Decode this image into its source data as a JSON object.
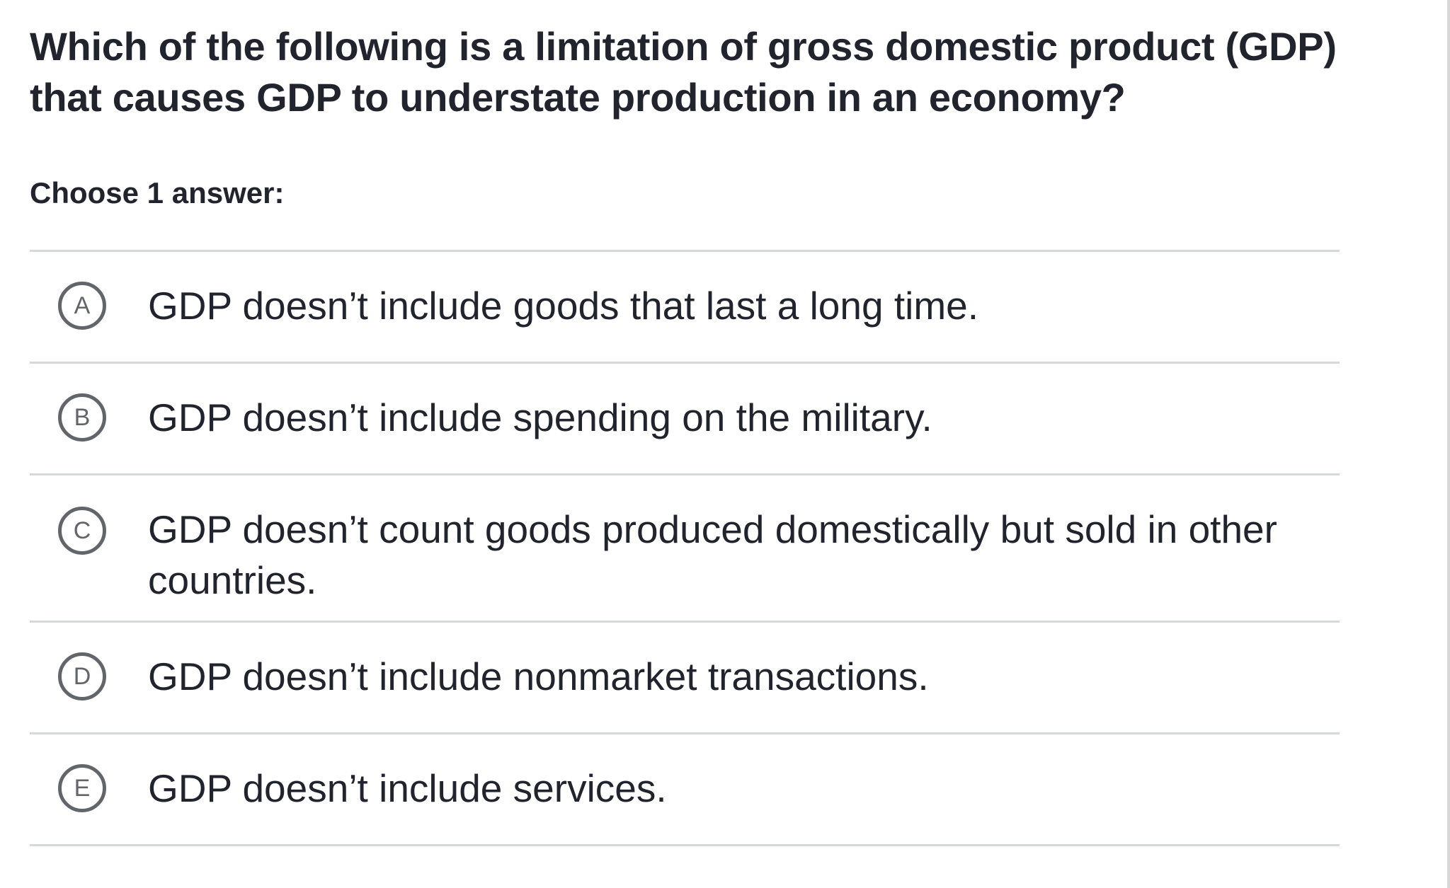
{
  "question": {
    "text": "Which of the following is a limitation of gross domestic product (GDP) that causes GDP to understate production in an economy?"
  },
  "prompt": {
    "text": "Choose 1 answer:"
  },
  "choices": [
    {
      "letter": "A",
      "text": "GDP doesn’t include goods that last a long time."
    },
    {
      "letter": "B",
      "text": "GDP doesn’t include spending on the military."
    },
    {
      "letter": "C",
      "text": "GDP doesn’t count goods produced domestically but sold in other countries."
    },
    {
      "letter": "D",
      "text": "GDP doesn’t include nonmarket transactions."
    },
    {
      "letter": "E",
      "text": "GDP doesn’t include services."
    }
  ],
  "colors": {
    "text": "#21242c",
    "bubble_border": "#626569",
    "divider": "#d6d8da",
    "background": "#ffffff"
  }
}
